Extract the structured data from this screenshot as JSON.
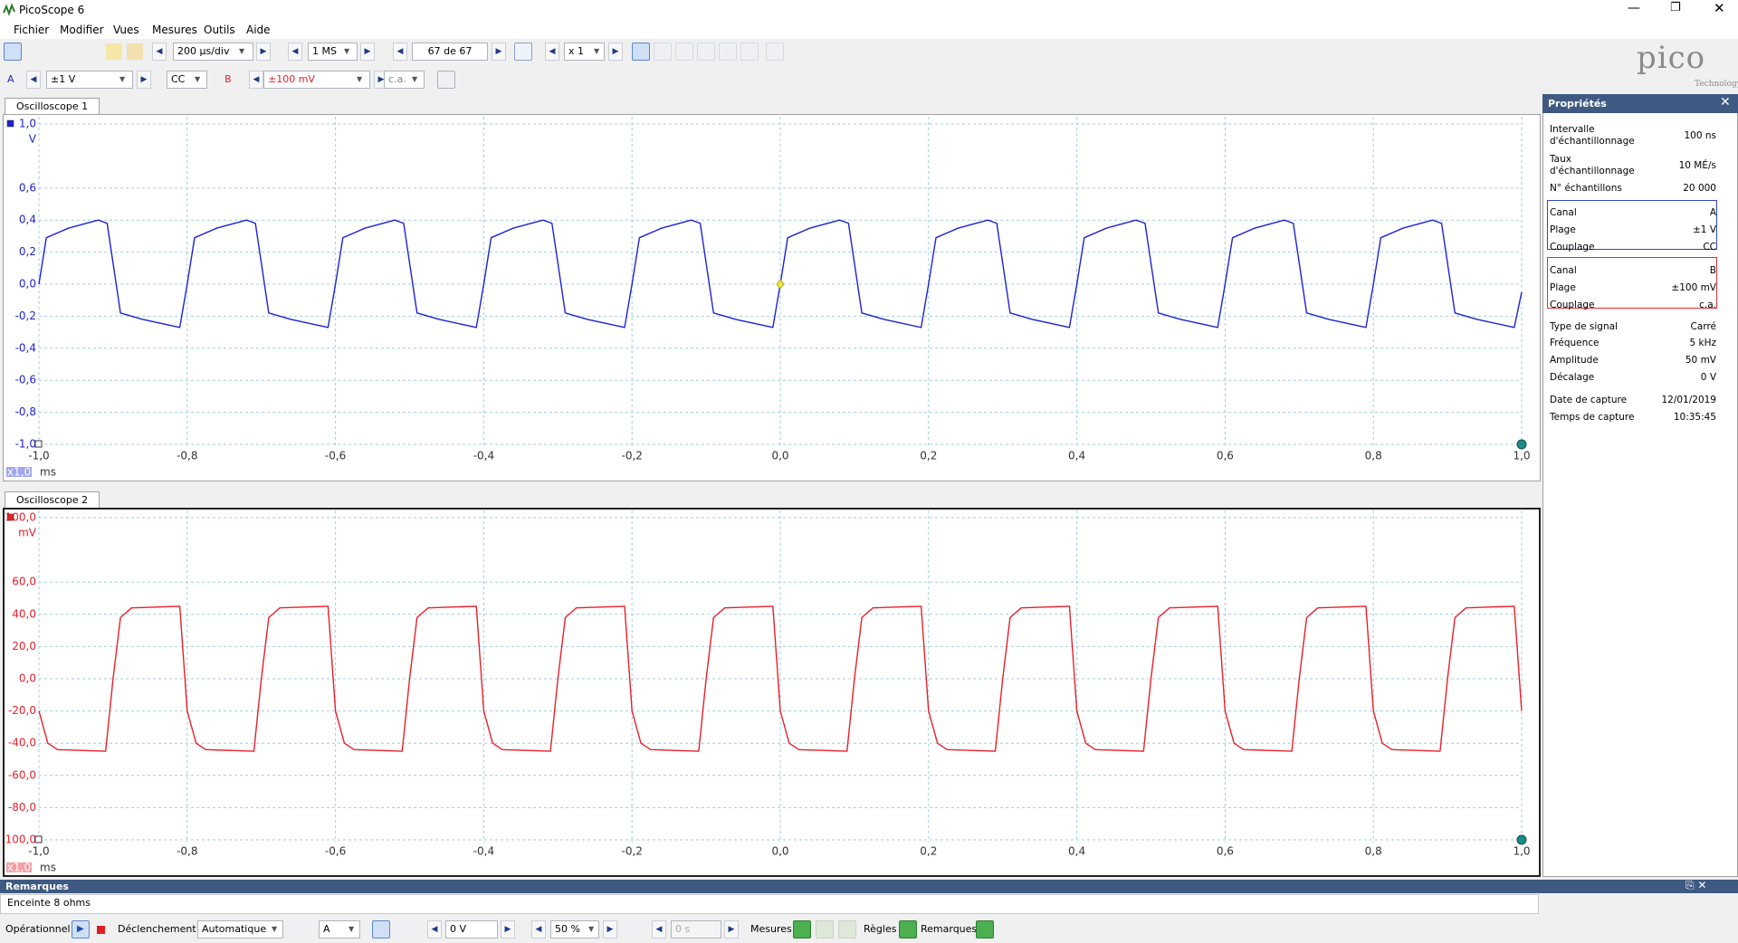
{
  "window": {
    "title": "PicoScope 6"
  },
  "menu": [
    "Fichier",
    "Modifier",
    "Vues",
    "Mesures",
    "Outils",
    "Aide"
  ],
  "toolbar": {
    "timebase": "200 µs/div",
    "samples": "1 MS",
    "buffer": "67 de 67",
    "zoom": "x 1"
  },
  "channels": [
    {
      "letter": "A",
      "range": "±1 V",
      "coupling": "CC"
    },
    {
      "letter": "B",
      "range": "±100 mV",
      "coupling": "c.a."
    }
  ],
  "logo": {
    "name": "pico",
    "tagline": "Technology"
  },
  "properties": {
    "title": "Propriétés",
    "acquisition": [
      {
        "label": "Intervalle d'échantillonnage",
        "value": "100 ns"
      },
      {
        "label": "Taux d'échantillonnage",
        "value": "10 MÉ/s"
      },
      {
        "label": "N° échantillons",
        "value": "20 000"
      }
    ],
    "channel_a": [
      {
        "label": "Canal",
        "value": "A"
      },
      {
        "label": "Plage",
        "value": "±1 V"
      },
      {
        "label": "Couplage",
        "value": "CC"
      }
    ],
    "channel_b": [
      {
        "label": "Canal",
        "value": "B"
      },
      {
        "label": "Plage",
        "value": "±100 mV"
      },
      {
        "label": "Couplage",
        "value": "c.a."
      }
    ],
    "signal": [
      {
        "label": "Type de signal",
        "value": "Carré"
      },
      {
        "label": "Fréquence",
        "value": "5 kHz"
      },
      {
        "label": "Amplitude",
        "value": "50 mV"
      },
      {
        "label": "Décalage",
        "value": "0 V"
      }
    ],
    "capture": [
      {
        "label": "Date de capture",
        "value": "12/01/2019"
      },
      {
        "label": "Temps de capture",
        "value": "10:35:45"
      }
    ]
  },
  "remarks": {
    "title": "Remarques",
    "text": "Enceinte 8 ohms"
  },
  "status_bar": {
    "state": "Opérationnel",
    "trigger_label": "Déclenchement",
    "trigger_mode": "Automatique",
    "trigger_channel": "A",
    "threshold": "0 V",
    "pre_trigger": "50 %",
    "delay": "0 s",
    "measures": "Mesures",
    "rulers": "Règles",
    "notes": "Remarques"
  },
  "chart_data": [
    {
      "type": "line",
      "title": "Oscilloscope 1",
      "y_unit": "V",
      "x_unit": "ms",
      "x_scale": "x1,0",
      "grid": true,
      "xlim": [
        -1,
        1
      ],
      "ylim": [
        -1,
        1
      ],
      "xticks": [
        {
          "value": -1,
          "label": "-1,0"
        },
        {
          "value": -0.8,
          "label": "-0,8"
        },
        {
          "value": -0.6,
          "label": "-0,6"
        },
        {
          "value": -0.4,
          "label": "-0,4"
        },
        {
          "value": -0.2,
          "label": "-0,2"
        },
        {
          "value": 0,
          "label": "0,0"
        },
        {
          "value": 0.2,
          "label": "0,2"
        },
        {
          "value": 0.4,
          "label": "0,4"
        },
        {
          "value": 0.6,
          "label": "0,6"
        },
        {
          "value": 0.8,
          "label": "0,8"
        },
        {
          "value": 1,
          "label": "1,0"
        }
      ],
      "yticks": [
        {
          "value": 1,
          "label": "1,0"
        },
        {
          "value": 0.6,
          "label": "0,6"
        },
        {
          "value": 0.4,
          "label": "0,4"
        },
        {
          "value": 0.2,
          "label": "0,2"
        },
        {
          "value": 0,
          "label": "0,0"
        },
        {
          "value": -0.2,
          "label": "-0,2"
        },
        {
          "value": -0.4,
          "label": "-0,4"
        },
        {
          "value": -0.6,
          "label": "-0,6"
        },
        {
          "value": -0.8,
          "label": "-0,8"
        },
        {
          "value": -1,
          "label": "-1,0"
        }
      ],
      "trigger": {
        "x": 0,
        "y": 0
      },
      "series": [
        {
          "color": "#1d22d2",
          "x": [
            -1.0,
            -0.99,
            -0.96,
            -0.92,
            -0.908,
            -0.89,
            -0.86,
            -0.81,
            -0.8,
            -0.79,
            -0.76,
            -0.72,
            -0.708,
            -0.69,
            -0.66,
            -0.61,
            -0.6,
            -0.59,
            -0.56,
            -0.52,
            -0.508,
            -0.49,
            -0.46,
            -0.41,
            -0.4,
            -0.39,
            -0.36,
            -0.32,
            -0.308,
            -0.29,
            -0.26,
            -0.21,
            -0.2,
            -0.19,
            -0.16,
            -0.12,
            -0.108,
            -0.09,
            -0.06,
            -0.01,
            0.0,
            0.01,
            0.04,
            0.08,
            0.092,
            0.11,
            0.14,
            0.19,
            0.2,
            0.21,
            0.24,
            0.28,
            0.292,
            0.31,
            0.34,
            0.39,
            0.4,
            0.41,
            0.44,
            0.48,
            0.492,
            0.51,
            0.54,
            0.59,
            0.6,
            0.61,
            0.64,
            0.68,
            0.692,
            0.71,
            0.74,
            0.79,
            0.8,
            0.81,
            0.84,
            0.88,
            0.892,
            0.91,
            0.94,
            0.99,
            1.0
          ],
          "values": [
            0.0,
            0.29,
            0.35,
            0.4,
            0.38,
            -0.18,
            -0.22,
            -0.27,
            0.0,
            0.29,
            0.35,
            0.4,
            0.38,
            -0.18,
            -0.22,
            -0.27,
            0.0,
            0.29,
            0.35,
            0.4,
            0.38,
            -0.18,
            -0.22,
            -0.27,
            0.0,
            0.29,
            0.35,
            0.4,
            0.38,
            -0.18,
            -0.22,
            -0.27,
            0.0,
            0.29,
            0.35,
            0.4,
            0.38,
            -0.18,
            -0.22,
            -0.27,
            0.0,
            0.29,
            0.35,
            0.4,
            0.38,
            -0.18,
            -0.22,
            -0.27,
            0.0,
            0.29,
            0.35,
            0.4,
            0.38,
            -0.18,
            -0.22,
            -0.27,
            0.0,
            0.29,
            0.35,
            0.4,
            0.38,
            -0.18,
            -0.22,
            -0.27,
            0.0,
            0.29,
            0.35,
            0.4,
            0.38,
            -0.18,
            -0.22,
            -0.27,
            0.0,
            0.29,
            0.35,
            0.4,
            0.38,
            -0.18,
            -0.22,
            -0.27,
            -0.05
          ]
        }
      ]
    },
    {
      "type": "line",
      "title": "Oscilloscope 2",
      "y_unit": "mV",
      "x_unit": "ms",
      "x_scale": "x1,0",
      "grid": true,
      "xlim": [
        -1,
        1
      ],
      "ylim": [
        -100,
        100
      ],
      "xticks": [
        {
          "value": -1,
          "label": "-1,0"
        },
        {
          "value": -0.8,
          "label": "-0,8"
        },
        {
          "value": -0.6,
          "label": "-0,6"
        },
        {
          "value": -0.4,
          "label": "-0,4"
        },
        {
          "value": -0.2,
          "label": "-0,2"
        },
        {
          "value": 0,
          "label": "0,0"
        },
        {
          "value": 0.2,
          "label": "0,2"
        },
        {
          "value": 0.4,
          "label": "0,4"
        },
        {
          "value": 0.6,
          "label": "0,6"
        },
        {
          "value": 0.8,
          "label": "0,8"
        },
        {
          "value": 1,
          "label": "1,0"
        }
      ],
      "yticks": [
        {
          "value": 100,
          "label": "100,0"
        },
        {
          "value": 60,
          "label": "60,0"
        },
        {
          "value": 40,
          "label": "40,0"
        },
        {
          "value": 20,
          "label": "20,0"
        },
        {
          "value": 0,
          "label": "0,0"
        },
        {
          "value": -20,
          "label": "-20,0"
        },
        {
          "value": -40,
          "label": "-40,0"
        },
        {
          "value": -60,
          "label": "-60,0"
        },
        {
          "value": -80,
          "label": "-80,0"
        },
        {
          "value": -100,
          "label": "-100,0"
        }
      ],
      "series": [
        {
          "color": "#e8202a",
          "x": [
            -1.0,
            -0.988,
            -0.975,
            -0.91,
            -0.9,
            -0.89,
            -0.875,
            -0.81,
            -0.8,
            -0.788,
            -0.775,
            -0.71,
            -0.7,
            -0.69,
            -0.675,
            -0.61,
            -0.6,
            -0.588,
            -0.575,
            -0.51,
            -0.5,
            -0.49,
            -0.475,
            -0.41,
            -0.4,
            -0.388,
            -0.375,
            -0.31,
            -0.3,
            -0.29,
            -0.275,
            -0.21,
            -0.2,
            -0.188,
            -0.175,
            -0.11,
            -0.1,
            -0.09,
            -0.075,
            -0.01,
            0.0,
            0.012,
            0.025,
            0.09,
            0.1,
            0.11,
            0.125,
            0.19,
            0.2,
            0.212,
            0.225,
            0.29,
            0.3,
            0.31,
            0.325,
            0.39,
            0.4,
            0.412,
            0.425,
            0.49,
            0.5,
            0.51,
            0.525,
            0.59,
            0.6,
            0.612,
            0.625,
            0.69,
            0.7,
            0.71,
            0.725,
            0.79,
            0.8,
            0.812,
            0.825,
            0.89,
            0.9,
            0.91,
            0.925,
            0.99,
            1.0
          ],
          "values": [
            -20,
            -40,
            -44,
            -45,
            0,
            38,
            44,
            45,
            -20,
            -40,
            -44,
            -45,
            0,
            38,
            44,
            45,
            -20,
            -40,
            -44,
            -45,
            0,
            38,
            44,
            45,
            -20,
            -40,
            -44,
            -45,
            0,
            38,
            44,
            45,
            -20,
            -40,
            -44,
            -45,
            0,
            38,
            44,
            45,
            -20,
            -40,
            -44,
            -45,
            0,
            38,
            44,
            45,
            -20,
            -40,
            -44,
            -45,
            0,
            38,
            44,
            45,
            -20,
            -40,
            -44,
            -45,
            0,
            38,
            44,
            45,
            -20,
            -40,
            -44,
            -45,
            0,
            38,
            44,
            45,
            -20,
            -40,
            -44,
            -45,
            0,
            38,
            44,
            45,
            -20
          ]
        }
      ]
    }
  ]
}
